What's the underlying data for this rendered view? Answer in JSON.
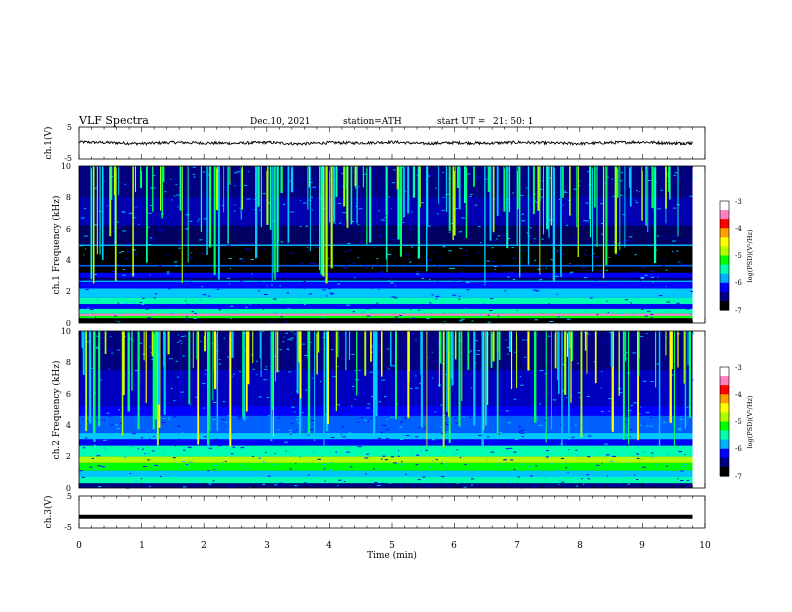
{
  "header": {
    "title": "VLF  Spectra",
    "date": "Dec.10, 2021",
    "station": "station=ATH",
    "start_label": "start  UT  =",
    "start_time": "21: 50: 1"
  },
  "colors": {
    "spectrogram_scale": [
      "#000000",
      "#000080",
      "#0000ff",
      "#00b0ff",
      "#00ffb0",
      "#00ff00",
      "#b0ff00",
      "#ffff00",
      "#ffa000",
      "#ff0000",
      "#ff80c0",
      "#ffffff"
    ],
    "waveform": "#000000",
    "frame": "#000000",
    "background": "#ffffff"
  },
  "chart_data": [
    {
      "type": "line",
      "panel": "ch1_waveform",
      "ylabel": "ch.1(V)",
      "ylim": [
        -5,
        5
      ],
      "y_ticks": [
        "5",
        "-5"
      ],
      "x": [
        0,
        0.5,
        1,
        1.5,
        2,
        2.5,
        3,
        3.5,
        4,
        4.5,
        5,
        5.5,
        6,
        6.5,
        7,
        7.5,
        8,
        8.5,
        9,
        9.5,
        9.8
      ],
      "values": [
        0.3,
        0.1,
        -0.2,
        0.2,
        0.0,
        -0.1,
        0.2,
        -0.3,
        0.1,
        0.0,
        0.3,
        -0.2,
        0.1,
        -0.1,
        0.2,
        0.0,
        -0.2,
        0.1,
        0.3,
        -0.1,
        0.0
      ]
    },
    {
      "type": "heatmap",
      "panel": "ch1_spectrogram",
      "ylabel": "ch.1  Frequency  (kHz)",
      "ylim": [
        0,
        10
      ],
      "y_ticks": [
        "0",
        "2",
        "4",
        "6",
        "8",
        "10"
      ],
      "xlim": [
        0,
        9.8
      ],
      "colorbar": {
        "label": "log(PSD)(V²/Hz)",
        "range": [
          -7,
          -3
        ],
        "ticks": [
          "-3",
          "-4",
          "-5",
          "-6",
          "-7"
        ]
      }
    },
    {
      "type": "heatmap",
      "panel": "ch2_spectrogram",
      "ylabel": "ch.2  Frequency  (kHz)",
      "ylim": [
        0,
        10
      ],
      "y_ticks": [
        "0",
        "2",
        "4",
        "6",
        "8",
        "10"
      ],
      "xlim": [
        0,
        9.8
      ],
      "colorbar": {
        "label": "log(PSD)(V²/Hz)",
        "range": [
          -7,
          -3
        ],
        "ticks": [
          "-3",
          "-4",
          "-5",
          "-6",
          "-7"
        ]
      }
    },
    {
      "type": "line",
      "panel": "ch3_waveform",
      "ylabel": "ch.3(V)",
      "ylim": [
        -5,
        5
      ],
      "y_ticks": [
        "5",
        "-5"
      ],
      "x": [
        0,
        9.8
      ],
      "values": [
        -1.5,
        -1.5
      ]
    }
  ],
  "x_axis": {
    "label": "Time  (min)",
    "xlim": [
      0,
      10
    ],
    "ticks": [
      "0",
      "1",
      "2",
      "3",
      "4",
      "5",
      "6",
      "7",
      "8",
      "9",
      "10"
    ]
  }
}
